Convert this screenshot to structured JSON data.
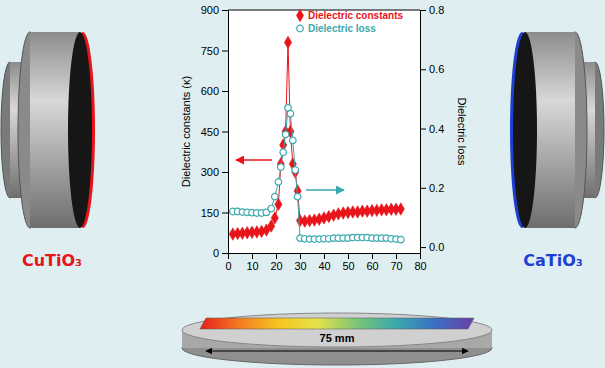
{
  "chart_data": {
    "type": "line",
    "y_label": "Dielectric constants (κ)",
    "y2_label": "Dielectric loss",
    "x": [
      2,
      4,
      6,
      8,
      10,
      12,
      14,
      16,
      18,
      19.5,
      21,
      22,
      23,
      24,
      25,
      26,
      27,
      28,
      29,
      30,
      32,
      34,
      36,
      38,
      40,
      42,
      44,
      46,
      48,
      50,
      52,
      54,
      56,
      58,
      60,
      62,
      64,
      66,
      68,
      70,
      72
    ],
    "series": [
      {
        "name": "Dielectric constants",
        "color": "#e8141a",
        "marker": "diamond",
        "line_style": "solid",
        "values": [
          70,
          72,
          73,
          75,
          77,
          78,
          80,
          85,
          100,
          130,
          180,
          330,
          400,
          450,
          780,
          450,
          330,
          300,
          230,
          120,
          118,
          120,
          122,
          125,
          130,
          135,
          140,
          145,
          148,
          150,
          152,
          152,
          155,
          155,
          157,
          158,
          160,
          160,
          162,
          162,
          163
        ]
      },
      {
        "name": "Dielectric loss",
        "color": "#3aa9ad",
        "marker": "circle-open",
        "line_style": "solid",
        "axis": "y2",
        "values": [
          0.12,
          0.12,
          0.118,
          0.117,
          0.116,
          0.115,
          0.115,
          0.117,
          0.13,
          0.17,
          0.22,
          0.27,
          0.32,
          0.38,
          0.47,
          0.45,
          0.36,
          0.26,
          0.17,
          0.03,
          0.028,
          0.027,
          0.027,
          0.027,
          0.028,
          0.028,
          0.03,
          0.03,
          0.03,
          0.03,
          0.032,
          0.032,
          0.032,
          0.032,
          0.03,
          0.03,
          0.03,
          0.03,
          0.028,
          0.027,
          0.025
        ]
      }
    ],
    "xlim": [
      0,
      80
    ],
    "xticks": [
      0,
      10,
      20,
      30,
      40,
      50,
      60,
      70,
      80
    ],
    "ylim": [
      0,
      900
    ],
    "yticks": [
      0,
      150,
      300,
      450,
      600,
      750,
      900
    ],
    "y2lim": [
      -0.02,
      0.8
    ],
    "y2ticks": [
      {
        "value": 0,
        "label": "0.0"
      },
      0.2,
      0.4,
      0.6,
      0.8
    ],
    "legend": "top-right",
    "grid": false,
    "annotations": [
      "CuTiO₃",
      "CaTiO₃",
      "75 mm"
    ]
  }
}
